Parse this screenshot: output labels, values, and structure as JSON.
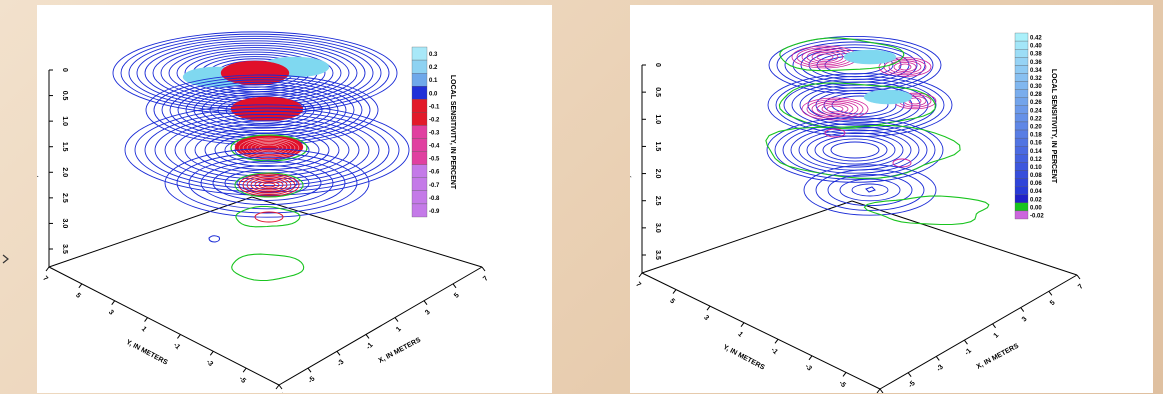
{
  "chart_data": [
    {
      "type": "contour",
      "z_axis_label": "Z, IN METERS",
      "z_ticks": [
        "0",
        "0.5",
        "1.0",
        "1.5",
        "2.0",
        "2.5",
        "3.0",
        "3.5"
      ],
      "y_axis_label": "Y, IN METERS",
      "y_ticks": [
        "7",
        "5",
        "3",
        "1",
        "-1",
        "-3",
        "-5",
        "-7"
      ],
      "x_axis_label": "X, IN METERS",
      "x_ticks": [
        "-7",
        "-5",
        "-3",
        "-1",
        "1",
        "3",
        "5",
        "7"
      ],
      "colorbar_title": "LOCAL SENSITIVITY, IN PERCENT",
      "colorbar_ticks": [
        "0.3",
        "0.2",
        "0.1",
        "0.0",
        "-0.1",
        "-0.2",
        "-0.3",
        "-0.4",
        "-0.5",
        "-0.6",
        "-0.7",
        "-0.8",
        "-0.9"
      ],
      "colorbar_range": [
        -0.9,
        0.3
      ],
      "colors": {
        "positive": "#1a2bd6",
        "negative": "#e0102a",
        "zero": "#19c41f",
        "cyan": "#7fd8f0",
        "violet": "#c77ee0"
      }
    },
    {
      "type": "contour",
      "z_axis_label": "Z, IN METERS",
      "z_ticks": [
        "0",
        "0.5",
        "1.0",
        "1.5",
        "2.0",
        "2.5",
        "3.0",
        "3.5"
      ],
      "y_axis_label": "Y, IN METERS",
      "y_ticks": [
        "7",
        "5",
        "3",
        "1",
        "-1",
        "-3",
        "-5",
        "-7"
      ],
      "x_axis_label": "X, IN METERS",
      "x_ticks": [
        "-7",
        "-5",
        "-3",
        "-1",
        "1",
        "3",
        "5",
        "7"
      ],
      "colorbar_title": "LOCAL SENSITIVITY, IN PERCENT",
      "colorbar_ticks": [
        "0.42",
        "0.40",
        "0.38",
        "0.36",
        "0.34",
        "0.32",
        "0.30",
        "0.28",
        "0.26",
        "0.24",
        "0.22",
        "0.20",
        "0.18",
        "0.16",
        "0.14",
        "0.12",
        "0.10",
        "0.08",
        "0.06",
        "0.04",
        "0.02",
        "0.00",
        "-0.02"
      ],
      "colorbar_range": [
        -0.02,
        0.42
      ],
      "colors": {
        "positive": "#1a2bd6",
        "negative": "#d0209a",
        "zero": "#19c41f",
        "cyan": "#7fd8f0",
        "violet": "#c77ee0"
      }
    }
  ]
}
